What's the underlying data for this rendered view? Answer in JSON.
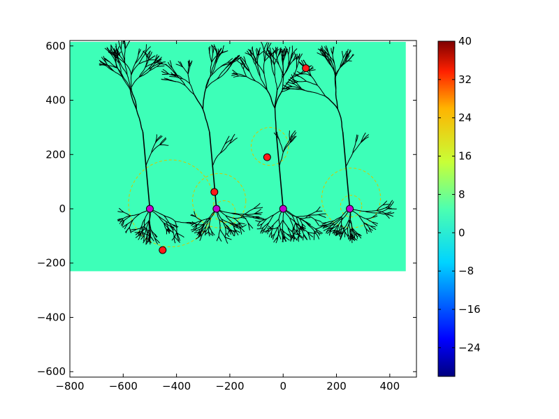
{
  "chart_data": {
    "type": "scatter",
    "title": "",
    "xlabel": "",
    "ylabel": "",
    "xlim": [
      -800,
      500
    ],
    "ylim": [
      -620,
      620
    ],
    "grid": false,
    "x_ticks": [
      -800,
      -600,
      -400,
      -200,
      0,
      200,
      400
    ],
    "y_ticks": [
      -600,
      -400,
      -200,
      0,
      200,
      400,
      600
    ],
    "x_tick_labels": [
      "−800",
      "−600",
      "−400",
      "−200",
      "0",
      "200",
      "400"
    ],
    "y_tick_labels": [
      "−600",
      "−400",
      "−200",
      "0",
      "200",
      "400",
      "600"
    ],
    "field_region": {
      "x": [
        -800,
        460
      ],
      "y": [
        -230,
        615
      ],
      "value": 0,
      "color": "#3dffb8"
    },
    "somas": {
      "color": "#c000d0",
      "points": [
        {
          "x": -500,
          "y": 0
        },
        {
          "x": -250,
          "y": 0
        },
        {
          "x": 0,
          "y": 0
        },
        {
          "x": 250,
          "y": 0
        }
      ]
    },
    "synapses": {
      "color": "#ff1a1a",
      "points": [
        {
          "x": -452,
          "y": -152
        },
        {
          "x": -258,
          "y": 62
        },
        {
          "x": -60,
          "y": 190
        },
        {
          "x": 85,
          "y": 518
        }
      ]
    },
    "dashed_circles": {
      "color": "#d4c800",
      "circles": [
        {
          "cx": -420,
          "cy": 20,
          "r": 160
        },
        {
          "cx": -240,
          "cy": 30,
          "r": 100
        },
        {
          "cx": -220,
          "cy": -10,
          "r": 40
        },
        {
          "cx": -50,
          "cy": 230,
          "r": 70
        },
        {
          "cx": 255,
          "cy": 40,
          "r": 110
        },
        {
          "cx": 255,
          "cy": 10,
          "r": 40
        }
      ]
    },
    "colorbar": {
      "min": -30,
      "max": 40,
      "ticks": [
        40,
        32,
        24,
        16,
        8,
        0,
        -8,
        -16,
        -24
      ],
      "tick_labels": [
        "40",
        "32",
        "24",
        "16",
        "8",
        "0",
        "−8",
        "−16",
        "−24"
      ],
      "colormap": "jet"
    }
  }
}
